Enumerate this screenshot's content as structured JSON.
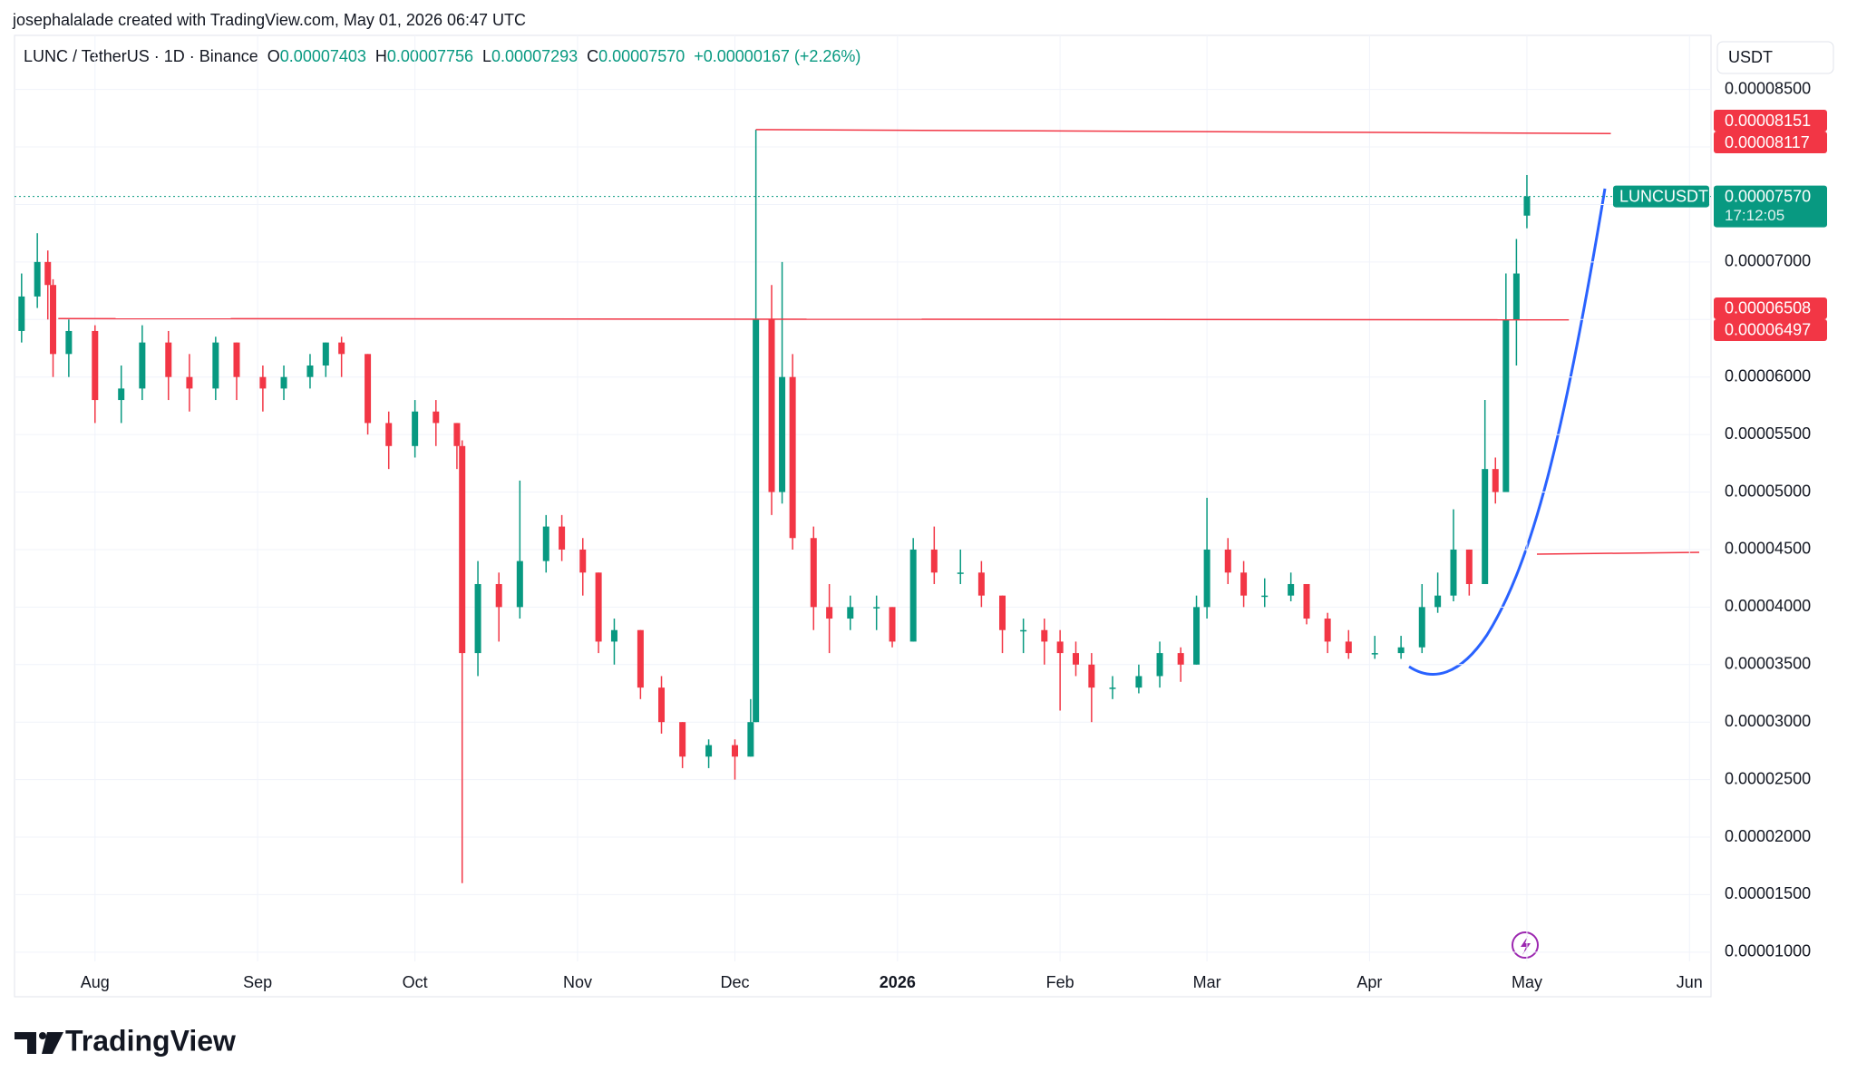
{
  "header": {
    "credit": "josephalalade created with TradingView.com, May 01, 2026 06:47 UTC",
    "symbol": "LUNC / TetherUS · 1D · Binance",
    "ohlc": [
      {
        "key": "O",
        "value": "0.00007403"
      },
      {
        "key": "H",
        "value": "0.00007756"
      },
      {
        "key": "L",
        "value": "0.00007293"
      },
      {
        "key": "C",
        "value": "0.00007570"
      }
    ],
    "change": "+0.00000167 (+2.26%)"
  },
  "footer": {
    "logo": "TradingView"
  },
  "chart_data": {
    "type": "candlestick",
    "currency": "USDT",
    "grid": true,
    "up_color": "#089981",
    "down_color": "#f23645",
    "xlim": [
      -15.35,
      308.1
    ],
    "xticks": [
      {
        "value": 0,
        "label": "Aug"
      },
      {
        "value": 31,
        "label": "Sep"
      },
      {
        "value": 61,
        "label": "Oct"
      },
      {
        "value": 92,
        "label": "Nov"
      },
      {
        "value": 122,
        "label": "Dec"
      },
      {
        "value": 153,
        "label": "2026"
      },
      {
        "value": 184,
        "label": "Feb"
      },
      {
        "value": 212,
        "label": "Mar"
      },
      {
        "value": 243,
        "label": "Apr"
      },
      {
        "value": 273,
        "label": "May"
      },
      {
        "value": 304,
        "label": "Jun"
      }
    ],
    "ylim": [
      9.2e-06,
      8.97e-05
    ],
    "yticks": [
      {
        "value": 1e-05,
        "label": "0.00001000"
      },
      {
        "value": 1.5e-05,
        "label": "0.00001500"
      },
      {
        "value": 2e-05,
        "label": "0.00002000"
      },
      {
        "value": 2.5e-05,
        "label": "0.00002500"
      },
      {
        "value": 3e-05,
        "label": "0.00003000"
      },
      {
        "value": 3.5e-05,
        "label": "0.00003500"
      },
      {
        "value": 4e-05,
        "label": "0.00004000"
      },
      {
        "value": 4.5e-05,
        "label": "0.00004500"
      },
      {
        "value": 5e-05,
        "label": "0.00005000"
      },
      {
        "value": 5.5e-05,
        "label": "0.00005500"
      },
      {
        "value": 6e-05,
        "label": "0.00006000"
      },
      {
        "value": 6.5e-05,
        "label": "0.00006500"
      },
      {
        "value": 7e-05,
        "label": "0.00007000"
      },
      {
        "value": 7.5e-05,
        "label": "0.00007500"
      },
      {
        "value": 8e-05,
        "label": "0.00008000"
      },
      {
        "value": 8.5e-05,
        "label": "0.00008500"
      }
    ],
    "x": [
      -14,
      -11,
      -9,
      -8,
      -5,
      0,
      5,
      9,
      14,
      18,
      23,
      27,
      32,
      36,
      41,
      44,
      47,
      52,
      56,
      61,
      65,
      69,
      70,
      73,
      77,
      81,
      86,
      89,
      93,
      96,
      99,
      104,
      108,
      112,
      117,
      122,
      125,
      126,
      129,
      131,
      133,
      137,
      140,
      144,
      149,
      152,
      156,
      160,
      165,
      169,
      173,
      177,
      181,
      184,
      187,
      190,
      194,
      199,
      203,
      207,
      210,
      212,
      216,
      219,
      223,
      228,
      231,
      235,
      239,
      244,
      249,
      253,
      256,
      259,
      262,
      265,
      267,
      269,
      271,
      273
    ],
    "series": [
      {
        "name": "LUNCUSDT",
        "open": [
          6.4e-05,
          6.7e-05,
          7e-05,
          6.8e-05,
          6.2e-05,
          6.4e-05,
          5.8e-05,
          5.9e-05,
          6.3e-05,
          6e-05,
          5.9e-05,
          6.3e-05,
          6e-05,
          5.9e-05,
          6e-05,
          6.1e-05,
          6.3e-05,
          6.2e-05,
          5.6e-05,
          5.4e-05,
          5.7e-05,
          5.6e-05,
          5.4e-05,
          3.6e-05,
          4.2e-05,
          4e-05,
          4.4e-05,
          4.7e-05,
          4.5e-05,
          4.3e-05,
          3.7e-05,
          3.8e-05,
          3.3e-05,
          3e-05,
          2.7e-05,
          2.8e-05,
          2.7e-05,
          3e-05,
          6.5e-05,
          5e-05,
          6e-05,
          4.6e-05,
          4e-05,
          3.9e-05,
          4e-05,
          4e-05,
          3.7e-05,
          4.5e-05,
          4.3e-05,
          4.3e-05,
          4.1e-05,
          3.8e-05,
          3.8e-05,
          3.7e-05,
          3.6e-05,
          3.5e-05,
          3.3e-05,
          3.3e-05,
          3.4e-05,
          3.6e-05,
          3.5e-05,
          4e-05,
          4.5e-05,
          4.3e-05,
          4.1e-05,
          4.1e-05,
          4.2e-05,
          3.9e-05,
          3.7e-05,
          3.6e-05,
          3.6e-05,
          3.65e-05,
          4e-05,
          4.1e-05,
          4.5e-05,
          4.2e-05,
          5.2e-05,
          5e-05,
          6.5e-05,
          7.403e-05
        ],
        "high": [
          6.9e-05,
          7.25e-05,
          7.1e-05,
          6.85e-05,
          6.5e-05,
          6.45e-05,
          6.1e-05,
          6.45e-05,
          6.4e-05,
          6.2e-05,
          6.35e-05,
          6.3e-05,
          6.1e-05,
          6.1e-05,
          6.2e-05,
          6.3e-05,
          6.35e-05,
          6.2e-05,
          5.7e-05,
          5.8e-05,
          5.8e-05,
          5.6e-05,
          5.45e-05,
          4.4e-05,
          4.3e-05,
          5.1e-05,
          4.8e-05,
          4.8e-05,
          4.6e-05,
          4.3e-05,
          3.9e-05,
          3.8e-05,
          3.4e-05,
          3e-05,
          2.85e-05,
          2.85e-05,
          3.2e-05,
          8.15e-05,
          6.8e-05,
          7e-05,
          6.2e-05,
          4.7e-05,
          4.2e-05,
          4.1e-05,
          4.1e-05,
          4e-05,
          4.6e-05,
          4.7e-05,
          4.5e-05,
          4.4e-05,
          4.1e-05,
          3.9e-05,
          3.9e-05,
          3.8e-05,
          3.7e-05,
          3.6e-05,
          3.4e-05,
          3.5e-05,
          3.7e-05,
          3.65e-05,
          4.1e-05,
          4.95e-05,
          4.6e-05,
          4.4e-05,
          4.25e-05,
          4.3e-05,
          4.2e-05,
          3.95e-05,
          3.8e-05,
          3.75e-05,
          3.75e-05,
          4.2e-05,
          4.3e-05,
          4.85e-05,
          4.5e-05,
          5.8e-05,
          5.3e-05,
          6.9e-05,
          7.2e-05,
          7.756e-05
        ],
        "low": [
          6.3e-05,
          6.6e-05,
          6.5e-05,
          6e-05,
          6e-05,
          5.6e-05,
          5.6e-05,
          5.8e-05,
          5.8e-05,
          5.7e-05,
          5.8e-05,
          5.8e-05,
          5.7e-05,
          5.8e-05,
          5.9e-05,
          6e-05,
          6e-05,
          5.5e-05,
          5.2e-05,
          5.3e-05,
          5.4e-05,
          5.2e-05,
          1.6e-05,
          3.4e-05,
          3.7e-05,
          3.9e-05,
          4.3e-05,
          4.4e-05,
          4.1e-05,
          3.6e-05,
          3.5e-05,
          3.2e-05,
          2.9e-05,
          2.6e-05,
          2.6e-05,
          2.5e-05,
          2.7e-05,
          3e-05,
          4.8e-05,
          4.9e-05,
          4.5e-05,
          3.8e-05,
          3.6e-05,
          3.8e-05,
          3.8e-05,
          3.65e-05,
          3.7e-05,
          4.2e-05,
          4.2e-05,
          4e-05,
          3.6e-05,
          3.6e-05,
          3.5e-05,
          3.1e-05,
          3.4e-05,
          3e-05,
          3.2e-05,
          3.25e-05,
          3.3e-05,
          3.35e-05,
          3.5e-05,
          3.9e-05,
          4.2e-05,
          4e-05,
          4e-05,
          4.05e-05,
          3.85e-05,
          3.6e-05,
          3.55e-05,
          3.55e-05,
          3.55e-05,
          3.6e-05,
          3.95e-05,
          4.05e-05,
          4.1e-05,
          4.2e-05,
          4.9e-05,
          5e-05,
          6.1e-05,
          7.293e-05
        ],
        "close": [
          6.7e-05,
          7e-05,
          6.8e-05,
          6.2e-05,
          6.4e-05,
          5.8e-05,
          5.9e-05,
          6.3e-05,
          6e-05,
          5.9e-05,
          6.3e-05,
          6e-05,
          5.9e-05,
          6e-05,
          6.1e-05,
          6.3e-05,
          6.2e-05,
          5.6e-05,
          5.4e-05,
          5.7e-05,
          5.6e-05,
          5.4e-05,
          3.6e-05,
          4.2e-05,
          4e-05,
          4.4e-05,
          4.7e-05,
          4.5e-05,
          4.3e-05,
          3.7e-05,
          3.8e-05,
          3.3e-05,
          3e-05,
          2.7e-05,
          2.8e-05,
          2.7e-05,
          3e-05,
          6.5e-05,
          5e-05,
          6e-05,
          4.6e-05,
          4e-05,
          3.9e-05,
          4e-05,
          4e-05,
          3.7e-05,
          4.5e-05,
          4.3e-05,
          4.3e-05,
          4.1e-05,
          3.8e-05,
          3.8e-05,
          3.7e-05,
          3.6e-05,
          3.5e-05,
          3.3e-05,
          3.3e-05,
          3.4e-05,
          3.6e-05,
          3.5e-05,
          4e-05,
          4.5e-05,
          4.3e-05,
          4.1e-05,
          4.1e-05,
          4.2e-05,
          3.9e-05,
          3.7e-05,
          3.6e-05,
          3.6e-05,
          3.65e-05,
          4e-05,
          4.1e-05,
          4.5e-05,
          4.2e-05,
          5.2e-05,
          5e-05,
          6.5e-05,
          6.9e-05,
          7.57e-05
        ]
      }
    ],
    "last_price": {
      "value": 7.57e-05,
      "label": "0.00007570",
      "countdown": "17:12:05"
    },
    "levels": [
      {
        "color": "#f23645",
        "start": {
          "value": 8.151e-05,
          "label": "0.00008151"
        },
        "end": {
          "value": 8.117e-05,
          "label": "0.00008117"
        }
      },
      {
        "color": "#f23645",
        "start": {
          "value": 6.508e-05,
          "label": "0.00006508"
        },
        "end": {
          "value": 6.497e-05,
          "label": "0.00006497"
        }
      }
    ]
  }
}
